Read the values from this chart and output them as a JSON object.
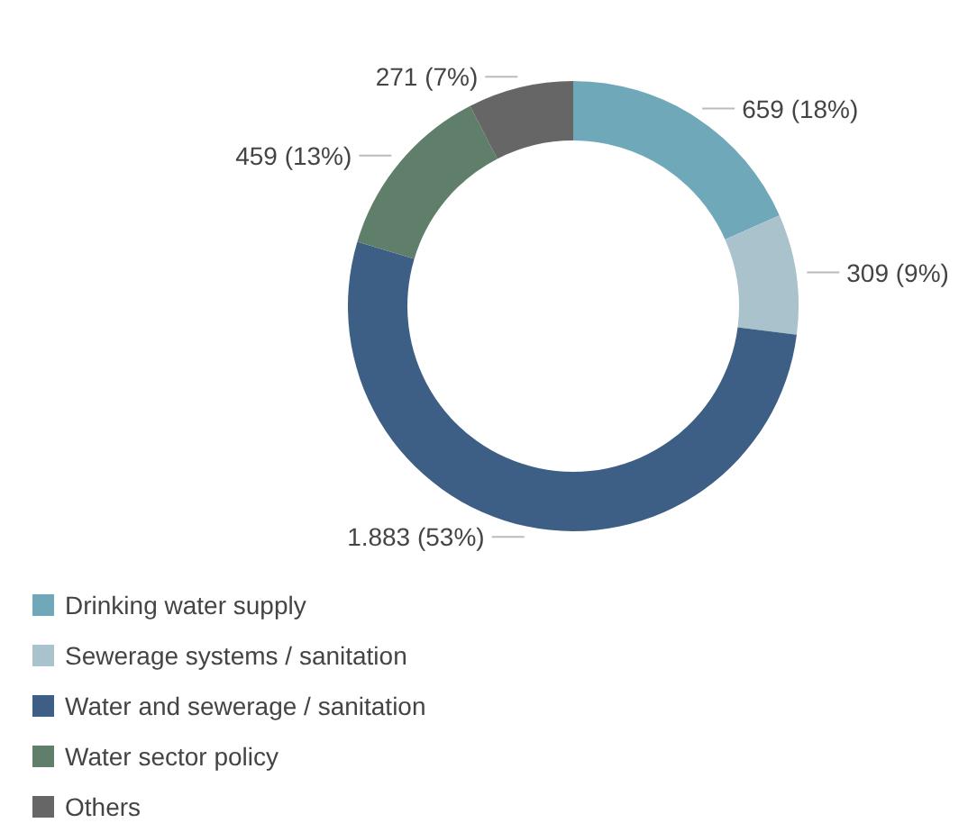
{
  "chart_data": {
    "type": "donut",
    "categories": [
      "Drinking water supply",
      "Sewerage systems / sanitation",
      "Water and sewerage / sanitation",
      "Water sector policy",
      "Others"
    ],
    "values": [
      659,
      309,
      1883,
      459,
      271
    ],
    "colors": [
      "#6fa8b8",
      "#a9c2cc",
      "#3d5f86",
      "#5f7f6a",
      "#666666"
    ],
    "value_labels": [
      "659 (18%)",
      "309 (9%)",
      "1.883 (53%)",
      "459 (13%)",
      "271 (7%)"
    ],
    "legend": "bottom"
  }
}
